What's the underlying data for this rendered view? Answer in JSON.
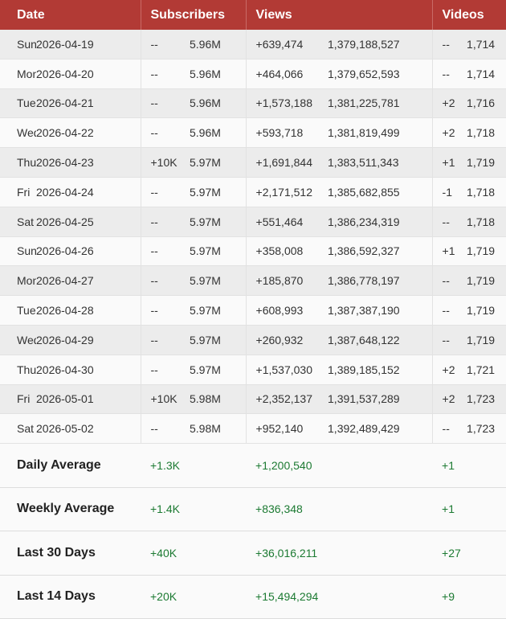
{
  "header": {
    "date": "Date",
    "subscribers": "Subscribers",
    "views": "Views",
    "videos": "Videos"
  },
  "rows": [
    {
      "day": "Sun",
      "date": "2026-04-19",
      "sub_change": "--",
      "subs": "5.96M",
      "views_change": "+639,474",
      "views": "1,379,188,527",
      "vid_change": "--",
      "videos": "1,714"
    },
    {
      "day": "Mon",
      "date": "2026-04-20",
      "sub_change": "--",
      "subs": "5.96M",
      "views_change": "+464,066",
      "views": "1,379,652,593",
      "vid_change": "--",
      "videos": "1,714"
    },
    {
      "day": "Tue",
      "date": "2026-04-21",
      "sub_change": "--",
      "subs": "5.96M",
      "views_change": "+1,573,188",
      "views": "1,381,225,781",
      "vid_change": "+2",
      "videos": "1,716"
    },
    {
      "day": "Wed",
      "date": "2026-04-22",
      "sub_change": "--",
      "subs": "5.96M",
      "views_change": "+593,718",
      "views": "1,381,819,499",
      "vid_change": "+2",
      "videos": "1,718"
    },
    {
      "day": "Thu",
      "date": "2026-04-23",
      "sub_change": "+10K",
      "subs": "5.97M",
      "views_change": "+1,691,844",
      "views": "1,383,511,343",
      "vid_change": "+1",
      "videos": "1,719"
    },
    {
      "day": "Fri",
      "date": "2026-04-24",
      "sub_change": "--",
      "subs": "5.97M",
      "views_change": "+2,171,512",
      "views": "1,385,682,855",
      "vid_change": "-1",
      "videos": "1,718"
    },
    {
      "day": "Sat",
      "date": "2026-04-25",
      "sub_change": "--",
      "subs": "5.97M",
      "views_change": "+551,464",
      "views": "1,386,234,319",
      "vid_change": "--",
      "videos": "1,718"
    },
    {
      "day": "Sun",
      "date": "2026-04-26",
      "sub_change": "--",
      "subs": "5.97M",
      "views_change": "+358,008",
      "views": "1,386,592,327",
      "vid_change": "+1",
      "videos": "1,719"
    },
    {
      "day": "Mon",
      "date": "2026-04-27",
      "sub_change": "--",
      "subs": "5.97M",
      "views_change": "+185,870",
      "views": "1,386,778,197",
      "vid_change": "--",
      "videos": "1,719"
    },
    {
      "day": "Tue",
      "date": "2026-04-28",
      "sub_change": "--",
      "subs": "5.97M",
      "views_change": "+608,993",
      "views": "1,387,387,190",
      "vid_change": "--",
      "videos": "1,719"
    },
    {
      "day": "Wed",
      "date": "2026-04-29",
      "sub_change": "--",
      "subs": "5.97M",
      "views_change": "+260,932",
      "views": "1,387,648,122",
      "vid_change": "--",
      "videos": "1,719"
    },
    {
      "day": "Thu",
      "date": "2026-04-30",
      "sub_change": "--",
      "subs": "5.97M",
      "views_change": "+1,537,030",
      "views": "1,389,185,152",
      "vid_change": "+2",
      "videos": "1,721"
    },
    {
      "day": "Fri",
      "date": "2026-05-01",
      "sub_change": "+10K",
      "subs": "5.98M",
      "views_change": "+2,352,137",
      "views": "1,391,537,289",
      "vid_change": "+2",
      "videos": "1,723"
    },
    {
      "day": "Sat",
      "date": "2026-05-02",
      "sub_change": "--",
      "subs": "5.98M",
      "views_change": "+952,140",
      "views": "1,392,489,429",
      "vid_change": "--",
      "videos": "1,723"
    }
  ],
  "summary": [
    {
      "label": "Daily Average",
      "subs": "+1.3K",
      "views": "+1,200,540",
      "videos": "+1"
    },
    {
      "label": "Weekly Average",
      "subs": "+1.4K",
      "views": "+836,348",
      "videos": "+1"
    },
    {
      "label": "Last 30 Days",
      "subs": "+40K",
      "views": "+36,016,211",
      "videos": "+27"
    },
    {
      "label": "Last 14 Days",
      "subs": "+20K",
      "views": "+15,494,294",
      "videos": "+9"
    }
  ],
  "colors": {
    "header_bg": "#b23a35",
    "gain": "#1c7a32",
    "loss": "#d9302a",
    "neutral": "#888888"
  }
}
